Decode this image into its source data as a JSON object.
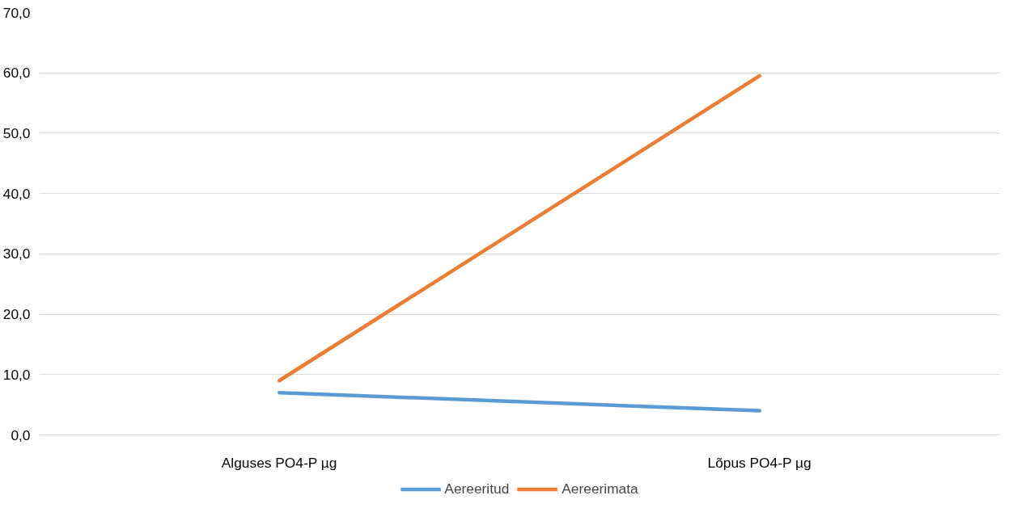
{
  "chart_data": {
    "type": "line",
    "categories": [
      "Alguses PO4-P µg",
      "Lõpus PO4-P µg"
    ],
    "series": [
      {
        "name": "Aereeritud",
        "color": "#5b9bd5",
        "values": [
          7.0,
          4.0
        ]
      },
      {
        "name": "Aereerimata",
        "color": "#ed7d31",
        "values": [
          9.0,
          59.5
        ]
      }
    ],
    "ylim": [
      0,
      70
    ],
    "yticks": [
      {
        "value": 0,
        "label": "0,0"
      },
      {
        "value": 10,
        "label": "10,0"
      },
      {
        "value": 20,
        "label": "20,0"
      },
      {
        "value": 30,
        "label": "30,0"
      },
      {
        "value": 40,
        "label": "40,0"
      },
      {
        "value": 50,
        "label": "50,0"
      },
      {
        "value": 60,
        "label": "60,0"
      },
      {
        "value": 70,
        "label": "70,0"
      }
    ],
    "grid": "y",
    "legend": "bottom",
    "line_style": "solid"
  }
}
